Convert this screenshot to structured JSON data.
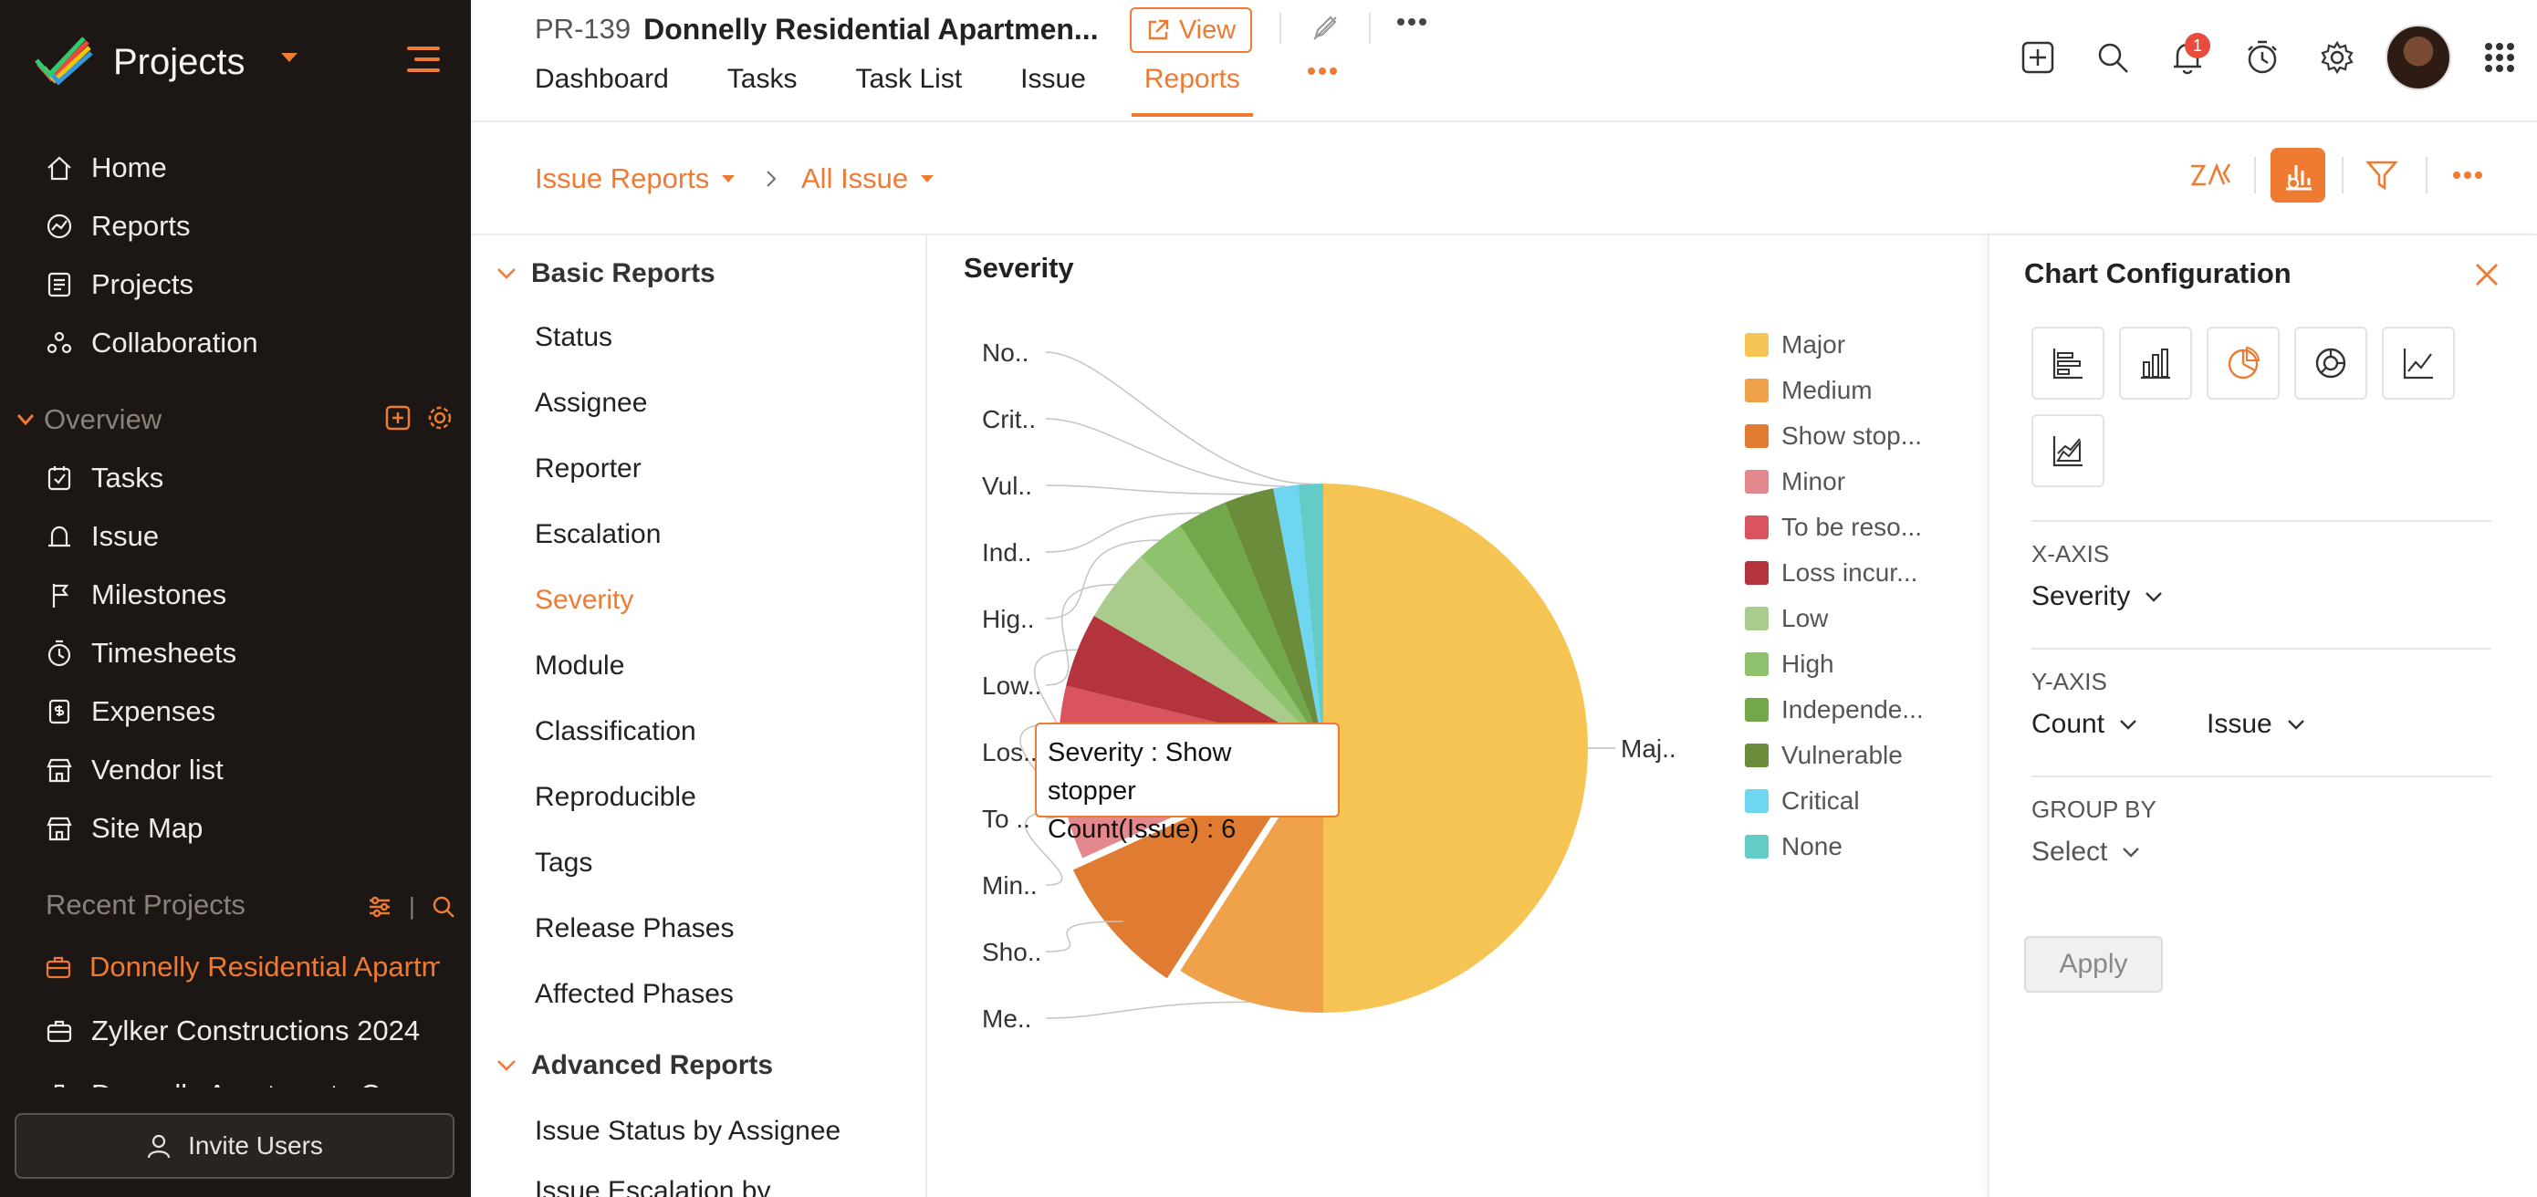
{
  "colors": {
    "accent": "#ef7a32",
    "sidebar_bg": "#1c1714"
  },
  "sidebar": {
    "app_title": "Projects",
    "nav": [
      {
        "label": "Home",
        "icon": "home-icon"
      },
      {
        "label": "Reports",
        "icon": "reports-icon"
      },
      {
        "label": "Projects",
        "icon": "projects-icon"
      },
      {
        "label": "Collaboration",
        "icon": "collaboration-icon"
      }
    ],
    "overview_label": "Overview",
    "overview_items": [
      {
        "label": "Tasks",
        "icon": "tasks-icon"
      },
      {
        "label": "Issue",
        "icon": "issue-icon"
      },
      {
        "label": "Milestones",
        "icon": "milestones-icon"
      },
      {
        "label": "Timesheets",
        "icon": "timesheets-icon"
      },
      {
        "label": "Expenses",
        "icon": "expenses-icon"
      },
      {
        "label": "Vendor list",
        "icon": "vendor-list-icon"
      },
      {
        "label": "Site Map",
        "icon": "site-map-icon"
      }
    ],
    "recent_label": "Recent Projects",
    "recent_projects": [
      {
        "label": "Donnelly Residential Apartm"
      },
      {
        "label": "Zylker Constructions 2024"
      },
      {
        "label": "Donnelly Apartments Cons"
      }
    ],
    "invite_label": "Invite Users"
  },
  "header": {
    "project_id": "PR-139",
    "project_name": "Donnelly Residential Apartmen...",
    "view_label": "View",
    "tabs": [
      {
        "label": "Dashboard"
      },
      {
        "label": "Tasks"
      },
      {
        "label": "Task List"
      },
      {
        "label": "Issue"
      },
      {
        "label": "Reports"
      }
    ],
    "notification_count": "1"
  },
  "subheader": {
    "breadcrumb_1": "Issue Reports",
    "breadcrumb_2": "All Issue"
  },
  "report_list": {
    "basic_label": "Basic Reports",
    "basic_items": [
      {
        "label": "Status"
      },
      {
        "label": "Assignee"
      },
      {
        "label": "Reporter"
      },
      {
        "label": "Escalation"
      },
      {
        "label": "Severity"
      },
      {
        "label": "Module"
      },
      {
        "label": "Classification"
      },
      {
        "label": "Reproducible"
      },
      {
        "label": "Tags"
      },
      {
        "label": "Release Phases"
      },
      {
        "label": "Affected Phases"
      }
    ],
    "advanced_label": "Advanced Reports",
    "advanced_items": [
      {
        "label": "Issue Status by Assignee"
      },
      {
        "label": "Issue Escalation by"
      }
    ]
  },
  "chart_data": {
    "type": "pie",
    "title": "Severity",
    "categories": [
      "Major",
      "Medium",
      "Show stopper",
      "Minor",
      "To be resolved",
      "Loss incurred",
      "Low",
      "High",
      "Independent",
      "Vulnerable",
      "Critical",
      "None"
    ],
    "legend_labels": [
      "Major",
      "Medium",
      "Show stop...",
      "Minor",
      "To be reso...",
      "Loss incur...",
      "Low",
      "High",
      "Independe...",
      "Vulnerable",
      "Critical",
      "None"
    ],
    "slice_labels": [
      "Maj..",
      "Me..",
      "Sho..",
      "Min..",
      "To ..",
      "Los..",
      "Low..",
      "Hig..",
      "Ind..",
      "Vul..",
      "Crit..",
      "No.."
    ],
    "values": [
      33,
      6,
      6,
      4,
      3,
      3,
      3,
      2,
      2,
      2,
      1,
      1
    ],
    "colors": [
      "#f6c453",
      "#f0a24b",
      "#e07b32",
      "#e3888d",
      "#d9545e",
      "#b3343c",
      "#a9cc8c",
      "#8fc26c",
      "#72a84b",
      "#6b8c3a",
      "#6fd6f2",
      "#63ccc6"
    ],
    "highlighted": "Show stopper",
    "legend_position": "right"
  },
  "tooltip": {
    "line1": "Severity : Show stopper",
    "line2": "Count(Issue) : 6"
  },
  "config": {
    "title": "Chart Configuration",
    "chart_types": [
      "horizontal-bar-icon",
      "vertical-bar-icon",
      "pie-chart-icon",
      "donut-chart-icon",
      "line-chart-icon",
      "area-chart-icon"
    ],
    "x_axis_label": "X-AXIS",
    "x_axis_value": "Severity",
    "y_axis_label": "Y-AXIS",
    "y_axis_value": "Count",
    "y_axis_field": "Issue",
    "group_by_label": "GROUP BY",
    "group_by_value": "Select",
    "apply_label": "Apply"
  }
}
